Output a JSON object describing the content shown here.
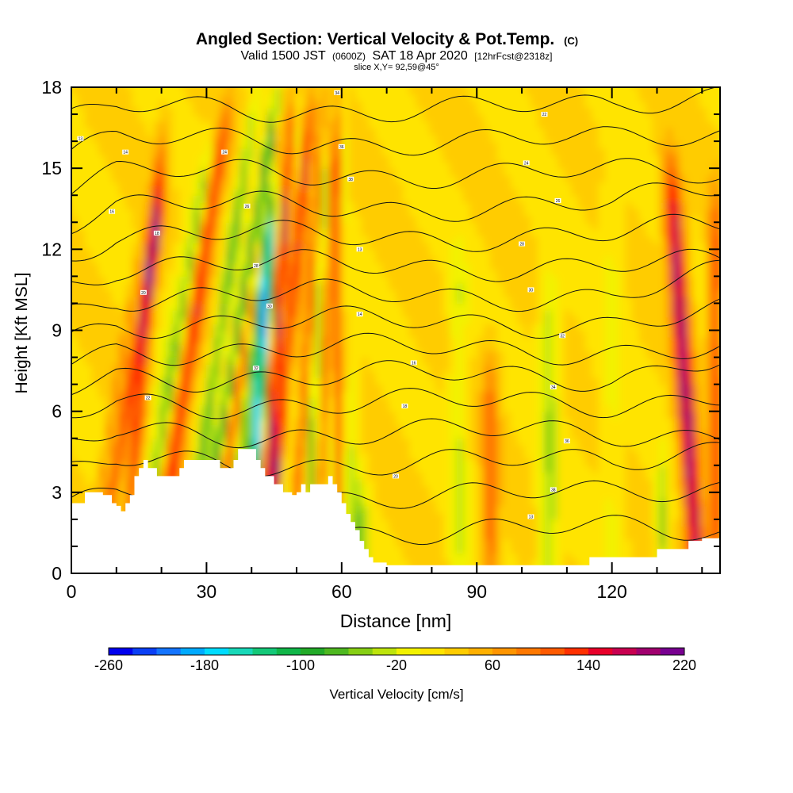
{
  "colors": {
    "terrain": "#ffffff",
    "contour": "#111111",
    "frame": "#000000"
  },
  "chart_data": {
    "type": "heatmap",
    "title": "Angled Section: Vertical Velocity & Pot.Temp.",
    "title_unit": "(C)",
    "subtitle_main": "Valid 1500 JST",
    "subtitle_z": "(0600Z)",
    "subtitle_date": "SAT 18 Apr 2020",
    "subtitle_fcst": "[12hrFcst@2318z]",
    "slice_label": "slice X,Y= 92,59@45°",
    "xlabel": "Distance [nm]",
    "ylabel": "Height [Kft MSL]",
    "xlim": [
      0,
      144
    ],
    "ylim": [
      0,
      18
    ],
    "x_ticks": [
      "0",
      "30",
      "60",
      "90",
      "120"
    ],
    "x_tick_values": [
      0,
      30,
      60,
      90,
      120
    ],
    "y_ticks": [
      "0",
      "3",
      "6",
      "9",
      "12",
      "15",
      "18"
    ],
    "y_tick_values": [
      0,
      3,
      6,
      9,
      12,
      15,
      18
    ],
    "colorbar": {
      "label": "Vertical Velocity [cm/s]",
      "tick_labels": [
        "-260",
        "-180",
        "-100",
        "-20",
        "60",
        "140",
        "220"
      ],
      "tick_values": [
        -260,
        -180,
        -100,
        -20,
        60,
        140,
        220
      ],
      "min": -260,
      "max": 220,
      "step": 20,
      "colors": [
        "#0000ee",
        "#0a3ff5",
        "#1474ff",
        "#00aaff",
        "#00dcff",
        "#18d8b8",
        "#14c878",
        "#10b648",
        "#22aa28",
        "#4eb820",
        "#86ce14",
        "#bde40c",
        "#f2f200",
        "#ffe400",
        "#ffcc00",
        "#ffb000",
        "#ff9500",
        "#ff7800",
        "#ff5a00",
        "#ff3000",
        "#e8002a",
        "#c80050",
        "#a0006e",
        "#780090"
      ]
    },
    "terrain_profile": {
      "x": [
        0,
        3,
        7,
        9,
        10,
        11,
        12,
        13,
        14,
        15,
        16,
        17,
        18,
        19,
        20,
        21,
        22,
        23,
        24,
        25,
        26,
        27,
        28,
        29,
        30,
        31,
        32,
        33,
        34,
        35,
        36,
        37,
        38,
        39,
        40,
        41,
        42,
        43,
        44,
        45,
        46,
        47,
        48,
        49,
        50,
        51,
        52,
        53,
        54,
        55,
        56,
        57,
        58,
        59,
        60,
        61,
        62,
        63,
        64,
        65,
        66,
        67,
        68,
        70,
        80,
        90,
        100,
        110,
        113,
        115,
        120,
        125,
        128,
        130,
        135,
        137,
        140,
        144
      ],
      "y": [
        2.6,
        3.0,
        2.9,
        2.6,
        2.5,
        2.3,
        2.6,
        2.9,
        3.6,
        3.9,
        4.2,
        3.9,
        3.9,
        3.6,
        3.6,
        3.6,
        3.6,
        3.6,
        3.9,
        4.2,
        4.2,
        4.2,
        4.2,
        4.2,
        4.2,
        4.2,
        4.2,
        3.9,
        3.9,
        3.9,
        4.2,
        4.6,
        4.6,
        4.6,
        4.6,
        4.2,
        3.9,
        3.6,
        3.6,
        3.3,
        3.3,
        3.0,
        3.0,
        2.9,
        3.0,
        3.3,
        3.0,
        3.3,
        3.3,
        3.3,
        3.3,
        3.6,
        3.3,
        3.0,
        2.6,
        2.2,
        1.9,
        1.6,
        1.2,
        0.9,
        0.6,
        0.4,
        0.4,
        0.3,
        0.3,
        0.3,
        0.3,
        0.3,
        0.3,
        0.6,
        0.6,
        0.6,
        0.6,
        0.9,
        0.9,
        1.2,
        1.3,
        1.3
      ]
    },
    "contour_labels": [
      "13",
      "14",
      "16",
      "18",
      "20",
      "22",
      "24",
      "26",
      "28",
      "30",
      "32",
      "34",
      "36",
      "38"
    ]
  }
}
